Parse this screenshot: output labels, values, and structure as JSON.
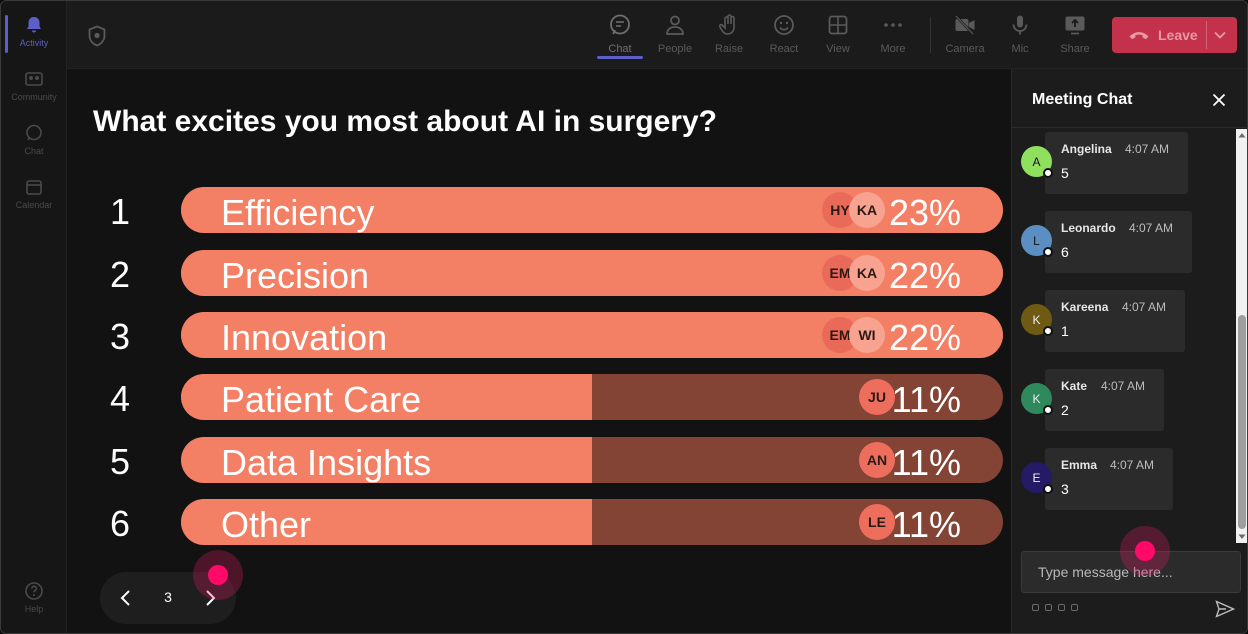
{
  "rail": {
    "items": [
      {
        "label": "Activity",
        "icon": "bell-icon",
        "active": true
      },
      {
        "label": "Community",
        "icon": "community-icon",
        "active": false
      },
      {
        "label": "Chat",
        "icon": "chat-icon",
        "active": false
      },
      {
        "label": "Calendar",
        "icon": "calendar-icon",
        "active": false
      }
    ],
    "help": {
      "label": "Help",
      "icon": "help-icon"
    }
  },
  "toolbar": {
    "buttons": [
      {
        "label": "Chat",
        "icon": "chat-bubble-icon",
        "active": true
      },
      {
        "label": "People",
        "icon": "people-icon",
        "active": false
      },
      {
        "label": "Raise",
        "icon": "raise-hand-icon",
        "active": false
      },
      {
        "label": "React",
        "icon": "react-smiley-icon",
        "active": false
      },
      {
        "label": "View",
        "icon": "view-grid-icon",
        "active": false
      },
      {
        "label": "More",
        "icon": "more-dots-icon",
        "active": false
      },
      {
        "label": "Camera",
        "icon": "camera-off-icon",
        "active": false
      },
      {
        "label": "Mic",
        "icon": "mic-icon",
        "active": false
      },
      {
        "label": "Share",
        "icon": "share-screen-icon",
        "active": false
      }
    ],
    "leave_label": "Leave",
    "leave_color": "#c4314b"
  },
  "poll": {
    "question": "What excites you most about AI in surgery?",
    "bar_color": "#f37f64",
    "track_color": "#834436",
    "options": [
      {
        "rank": "1",
        "label": "Efficiency",
        "percent_label": "23%",
        "fill": 1.0,
        "avatars": [
          "HY",
          "KA"
        ]
      },
      {
        "rank": "2",
        "label": "Precision",
        "percent_label": "22%",
        "fill": 1.0,
        "avatars": [
          "EM",
          "KA"
        ]
      },
      {
        "rank": "3",
        "label": "Innovation",
        "percent_label": "22%",
        "fill": 1.0,
        "avatars": [
          "EM",
          "WI"
        ]
      },
      {
        "rank": "4",
        "label": "Patient Care",
        "percent_label": "11%",
        "fill": 0.5,
        "avatars": [
          "JU"
        ]
      },
      {
        "rank": "5",
        "label": "Data Insights",
        "percent_label": "11%",
        "fill": 0.5,
        "avatars": [
          "AN"
        ]
      },
      {
        "rank": "6",
        "label": "Other",
        "percent_label": "11%",
        "fill": 0.5,
        "avatars": [
          "LE"
        ]
      }
    ],
    "pager": {
      "page": "3"
    }
  },
  "chat": {
    "title": "Meeting Chat",
    "messages": [
      {
        "initial": "A",
        "name": "Angelina",
        "time": "4:07 AM",
        "text": "5",
        "avatar_color": "#8ee05e"
      },
      {
        "initial": "L",
        "name": "Leonardo",
        "time": "4:07 AM",
        "text": "6",
        "avatar_color": "#5b8fc3"
      },
      {
        "initial": "K",
        "name": "Kareena",
        "time": "4:07 AM",
        "text": "1",
        "avatar_color": "#6e5a12"
      },
      {
        "initial": "K",
        "name": "Kate",
        "time": "4:07 AM",
        "text": "2",
        "avatar_color": "#2e8a5c"
      },
      {
        "initial": "E",
        "name": "Emma",
        "time": "4:07 AM",
        "text": "3",
        "avatar_color": "#241a66"
      }
    ],
    "input_placeholder": "Type message here..."
  }
}
